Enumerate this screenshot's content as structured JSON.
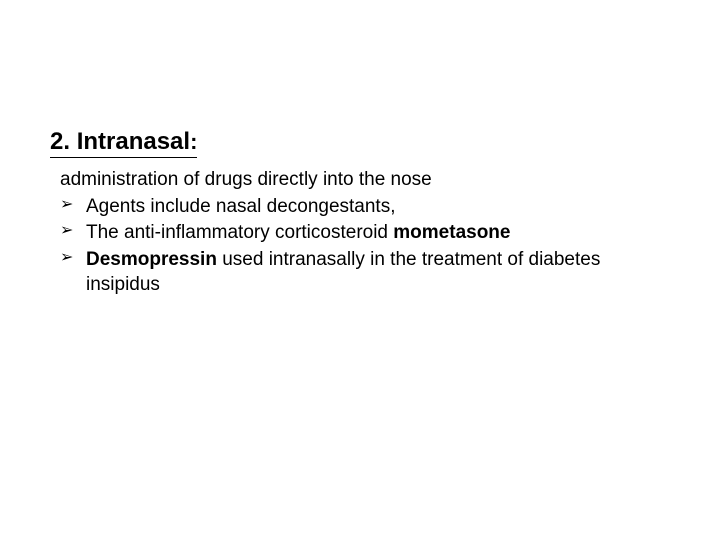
{
  "slide": {
    "heading_number": "2. ",
    "heading_text": "Intranasal",
    "heading_colon": ":",
    "intro": "administration of drugs directly into the nose",
    "bullets": [
      {
        "marker": "➢",
        "text_before": "Agents include nasal decongestants,",
        "bold_text": "",
        "text_after": ""
      },
      {
        "marker": "➢",
        "text_before": "The anti-inflammatory corticosteroid ",
        "bold_text": "mometasone",
        "text_after": ""
      },
      {
        "marker": "➢",
        "text_before": "",
        "bold_text": "Desmopressin",
        "text_after": " used intranasally in the treatment of diabetes insipidus"
      }
    ]
  },
  "style": {
    "background_color": "#ffffff",
    "text_color": "#000000",
    "heading_fontsize": 24,
    "body_fontsize": 19,
    "font_family": "Arial"
  }
}
